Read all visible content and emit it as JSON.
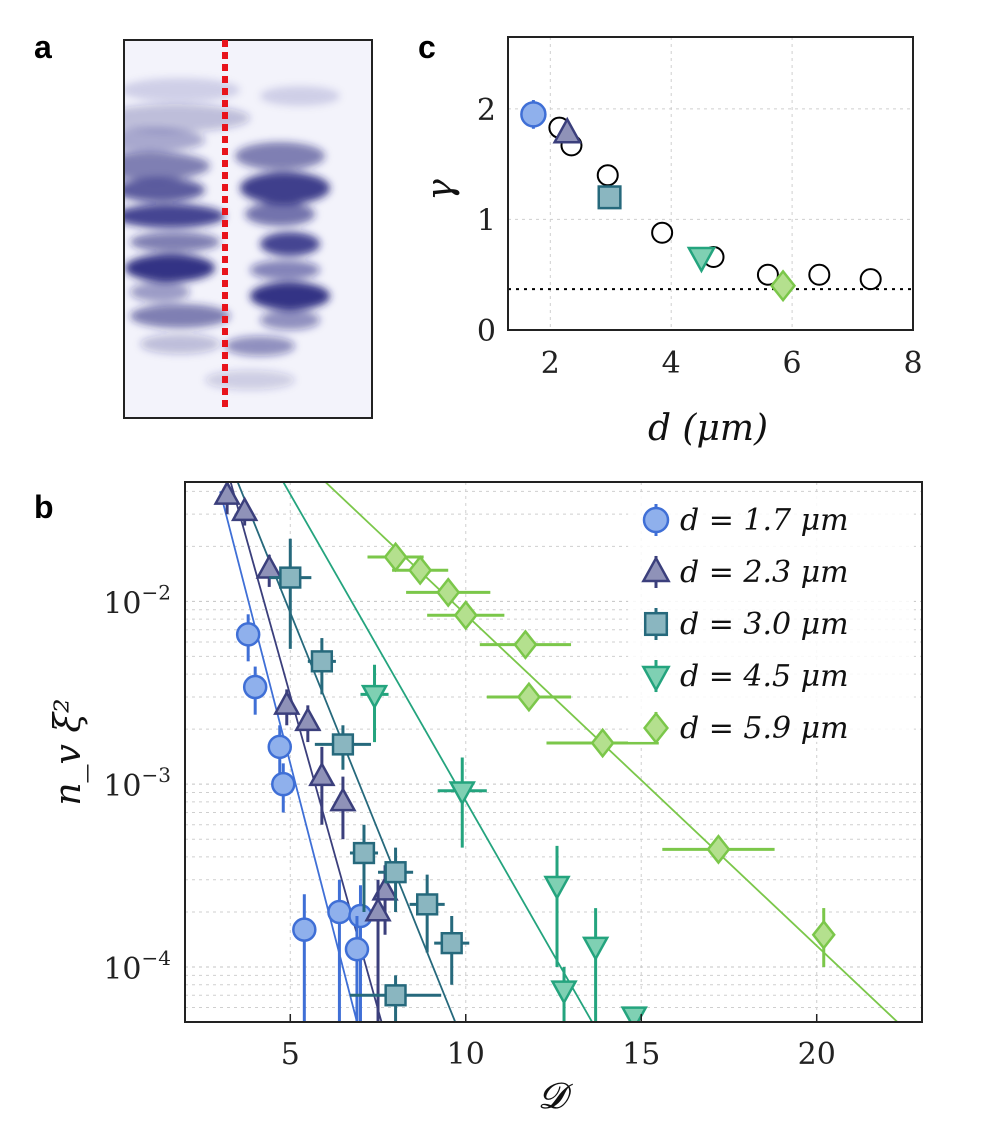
{
  "panels": {
    "a": {
      "letter": "a",
      "description_none": ""
    },
    "b": {
      "letter": "b"
    },
    "c": {
      "letter": "c"
    }
  },
  "colors": {
    "d17": "#3f6fd6",
    "d17_fill": "#8fb0ec",
    "d23": "#3b3f7c",
    "d23_fill": "#8f92b8",
    "d30": "#26697c",
    "d30_fill": "#8ab6c0",
    "d45": "#24a47e",
    "d45_fill": "#7fd0b3",
    "d59": "#7bc74a",
    "d59_fill": "#b4e08e",
    "marker_line": "#1e3a8a",
    "red_dash": "#e8141c"
  },
  "chart_data": [
    {
      "id": "panel-c",
      "type": "scatter",
      "xlabel": "d (μm)",
      "ylabel": "γ",
      "xlim": [
        1.3,
        8
      ],
      "ylim": [
        0,
        2.65
      ],
      "xticks": [
        "2",
        "4",
        "6",
        "8"
      ],
      "xtick_values": [
        2,
        4,
        6,
        8
      ],
      "yticks": [
        "0",
        "1",
        "2"
      ],
      "ytick_values": [
        0,
        1,
        2
      ],
      "reference_line": 0.37,
      "open_circles": [
        {
          "x": 2.15,
          "y": 1.83
        },
        {
          "x": 2.35,
          "y": 1.67
        },
        {
          "x": 2.95,
          "y": 1.4
        },
        {
          "x": 3.85,
          "y": 0.88
        },
        {
          "x": 4.7,
          "y": 0.66
        },
        {
          "x": 5.6,
          "y": 0.5
        },
        {
          "x": 6.45,
          "y": 0.5
        },
        {
          "x": 7.3,
          "y": 0.46
        }
      ],
      "filled_points": [
        {
          "series": "d = 1.7 μm",
          "marker": "circle",
          "x": 1.72,
          "y": 1.95,
          "yerr": 0.13
        },
        {
          "series": "d = 2.3 μm",
          "marker": "triangle-up",
          "x": 2.28,
          "y": 1.78,
          "yerr": 0.08
        },
        {
          "series": "d = 3.0 μm",
          "marker": "square",
          "x": 2.98,
          "y": 1.2,
          "yerr": 0.05
        },
        {
          "series": "d = 4.5 μm",
          "marker": "triangle-down",
          "x": 4.5,
          "y": 0.66,
          "yerr": 0.04
        },
        {
          "series": "d = 5.9 μm",
          "marker": "diamond",
          "x": 5.85,
          "y": 0.4,
          "yerr": 0.03
        }
      ]
    },
    {
      "id": "panel-b",
      "type": "scatter",
      "yscale": "log",
      "xlabel": "𝓓",
      "ylabel": "n_v ξ²",
      "xlim": [
        2,
        23
      ],
      "ylim": [
        5e-05,
        0.045
      ],
      "xticks": [
        "5",
        "10",
        "15",
        "20"
      ],
      "xtick_values": [
        5,
        10,
        15,
        20
      ],
      "yticks": [
        {
          "base": "10",
          "exp": "−2",
          "value": 0.01
        },
        {
          "base": "10",
          "exp": "−3",
          "value": 0.001
        },
        {
          "base": "10",
          "exp": "−4",
          "value": 0.0001
        }
      ],
      "legend_position": "top-right",
      "series": [
        {
          "name": "d = 1.7 μm",
          "legend": "d = 1.7 μm",
          "marker": "circle",
          "color_key": "d17",
          "fit": {
            "x1": 3.0,
            "y1": 0.04,
            "x2": 6.9,
            "y2": 5e-05
          },
          "points": [
            {
              "x": 3.8,
              "y": 0.0066,
              "xerr": 0.0,
              "ylo": 0.0047,
              "yhi": 0.0085
            },
            {
              "x": 4.0,
              "y": 0.0034,
              "xerr": 0.0,
              "ylo": 0.0024,
              "yhi": 0.0044
            },
            {
              "x": 4.7,
              "y": 0.0016,
              "xerr": 0.0,
              "ylo": 0.0011,
              "yhi": 0.0021
            },
            {
              "x": 4.8,
              "y": 0.001,
              "xerr": 0.0,
              "ylo": 0.0007,
              "yhi": 0.0013
            },
            {
              "x": 5.4,
              "y": 0.00016,
              "xerr": 0.0,
              "ylo": 5e-05,
              "yhi": 0.00025
            },
            {
              "x": 6.4,
              "y": 0.0002,
              "xerr": 0.0,
              "ylo": 5e-05,
              "yhi": 0.0003
            },
            {
              "x": 7.0,
              "y": 0.00019,
              "xerr": 0.0,
              "ylo": 5e-05,
              "yhi": 0.00028
            },
            {
              "x": 6.9,
              "y": 0.000125,
              "xerr": 0.0,
              "ylo": 5e-05,
              "yhi": 0.00019
            }
          ]
        },
        {
          "name": "d = 2.3 μm",
          "legend": "d = 2.3 μm",
          "marker": "triangle-up",
          "color_key": "d23",
          "fit": {
            "x1": 3.3,
            "y1": 0.045,
            "x2": 7.6,
            "y2": 5e-05
          },
          "points": [
            {
              "x": 3.2,
              "y": 0.038,
              "xerr": 0.0,
              "ylo": 0.03,
              "yhi": 0.045
            },
            {
              "x": 3.7,
              "y": 0.031,
              "xerr": 0.0,
              "ylo": 0.026,
              "yhi": 0.036
            },
            {
              "x": 4.4,
              "y": 0.015,
              "xerr": 0.0,
              "ylo": 0.012,
              "yhi": 0.018
            },
            {
              "x": 4.9,
              "y": 0.0027,
              "xerr": 0.0,
              "ylo": 0.0021,
              "yhi": 0.0033
            },
            {
              "x": 5.5,
              "y": 0.0022,
              "xerr": 0.0,
              "ylo": 0.0017,
              "yhi": 0.0027
            },
            {
              "x": 5.9,
              "y": 0.0011,
              "xerr": 0.0,
              "ylo": 0.0006,
              "yhi": 0.0016
            },
            {
              "x": 6.5,
              "y": 0.0008,
              "xerr": 0.0,
              "ylo": 0.0005,
              "yhi": 0.0011
            },
            {
              "x": 7.7,
              "y": 0.00026,
              "xerr": 0.0,
              "ylo": 0.00015,
              "yhi": 0.00036
            },
            {
              "x": 7.5,
              "y": 0.0002,
              "xerr": 0.0,
              "ylo": 5e-05,
              "yhi": 0.0003
            }
          ]
        },
        {
          "name": "d = 3.0 μm",
          "legend": "d = 3.0 μm",
          "marker": "square",
          "color_key": "d30",
          "fit": {
            "x1": 3.5,
            "y1": 0.045,
            "x2": 9.7,
            "y2": 5e-05
          },
          "points": [
            {
              "x": 5.0,
              "y": 0.0135,
              "xerr": 0.6,
              "ylo": 0.0055,
              "yhi": 0.022
            },
            {
              "x": 5.9,
              "y": 0.0047,
              "xerr": 0.4,
              "ylo": 0.0031,
              "yhi": 0.0063
            },
            {
              "x": 6.5,
              "y": 0.00165,
              "xerr": 0.8,
              "ylo": 0.0012,
              "yhi": 0.0021
            },
            {
              "x": 7.1,
              "y": 0.00042,
              "xerr": 0.4,
              "ylo": 0.0002,
              "yhi": 0.0006
            },
            {
              "x": 8.0,
              "y": 0.00033,
              "xerr": 0.5,
              "ylo": 0.0002,
              "yhi": 0.00045
            },
            {
              "x": 8.9,
              "y": 0.00022,
              "xerr": 0.5,
              "ylo": 0.00012,
              "yhi": 0.00032
            },
            {
              "x": 9.6,
              "y": 0.000135,
              "xerr": 0.5,
              "ylo": 8e-05,
              "yhi": 0.00019
            },
            {
              "x": 8.0,
              "y": 7e-05,
              "xerr": 1.3,
              "ylo": 5e-05,
              "yhi": 9e-05
            }
          ]
        },
        {
          "name": "d = 4.5 μm",
          "legend": "d = 4.5 μm",
          "marker": "triangle-down",
          "color_key": "d45",
          "fit": {
            "x1": 4.8,
            "y1": 0.045,
            "x2": 13.6,
            "y2": 5e-05
          },
          "points": [
            {
              "x": 7.4,
              "y": 0.0031,
              "xerr": 0.4,
              "ylo": 0.0017,
              "yhi": 0.0045
            },
            {
              "x": 9.9,
              "y": 0.00092,
              "xerr": 0.7,
              "ylo": 0.00045,
              "yhi": 0.0014
            },
            {
              "x": 12.6,
              "y": 0.00028,
              "xerr": 0.0,
              "ylo": 0.0001,
              "yhi": 0.00046
            },
            {
              "x": 13.7,
              "y": 0.00013,
              "xerr": 0.0,
              "ylo": 5e-05,
              "yhi": 0.00021
            },
            {
              "x": 12.8,
              "y": 7.5e-05,
              "xerr": 0.0,
              "ylo": 5e-05,
              "yhi": 0.0001
            },
            {
              "x": 14.8,
              "y": 5.4e-05,
              "xerr": 0.0,
              "ylo": 5e-05,
              "yhi": 6e-05
            }
          ]
        },
        {
          "name": "d = 5.9 μm",
          "legend": "d = 5.9 μm",
          "marker": "diamond",
          "color_key": "d59",
          "fit": {
            "x1": 6.0,
            "y1": 0.045,
            "x2": 22.3,
            "y2": 5e-05
          },
          "points": [
            {
              "x": 8.0,
              "y": 0.0175,
              "xerr": 0.8,
              "ylo": 0.0165,
              "yhi": 0.0185
            },
            {
              "x": 8.7,
              "y": 0.0148,
              "xerr": 0.8,
              "ylo": 0.0138,
              "yhi": 0.0158
            },
            {
              "x": 9.5,
              "y": 0.0112,
              "xerr": 1.2,
              "ylo": 0.0104,
              "yhi": 0.012
            },
            {
              "x": 10.0,
              "y": 0.0084,
              "xerr": 1.1,
              "ylo": 0.0078,
              "yhi": 0.009
            },
            {
              "x": 11.7,
              "y": 0.0058,
              "xerr": 1.3,
              "ylo": 0.0053,
              "yhi": 0.0063
            },
            {
              "x": 11.8,
              "y": 0.003,
              "xerr": 1.2,
              "ylo": 0.0027,
              "yhi": 0.0033
            },
            {
              "x": 13.9,
              "y": 0.00168,
              "xerr": 1.6,
              "ylo": 0.00155,
              "yhi": 0.00181
            },
            {
              "x": 17.2,
              "y": 0.00044,
              "xerr": 1.6,
              "ylo": 0.0004,
              "yhi": 0.00048
            },
            {
              "x": 20.2,
              "y": 0.00015,
              "xerr": 0.0,
              "ylo": 0.0001,
              "yhi": 0.00021
            }
          ]
        }
      ]
    }
  ]
}
